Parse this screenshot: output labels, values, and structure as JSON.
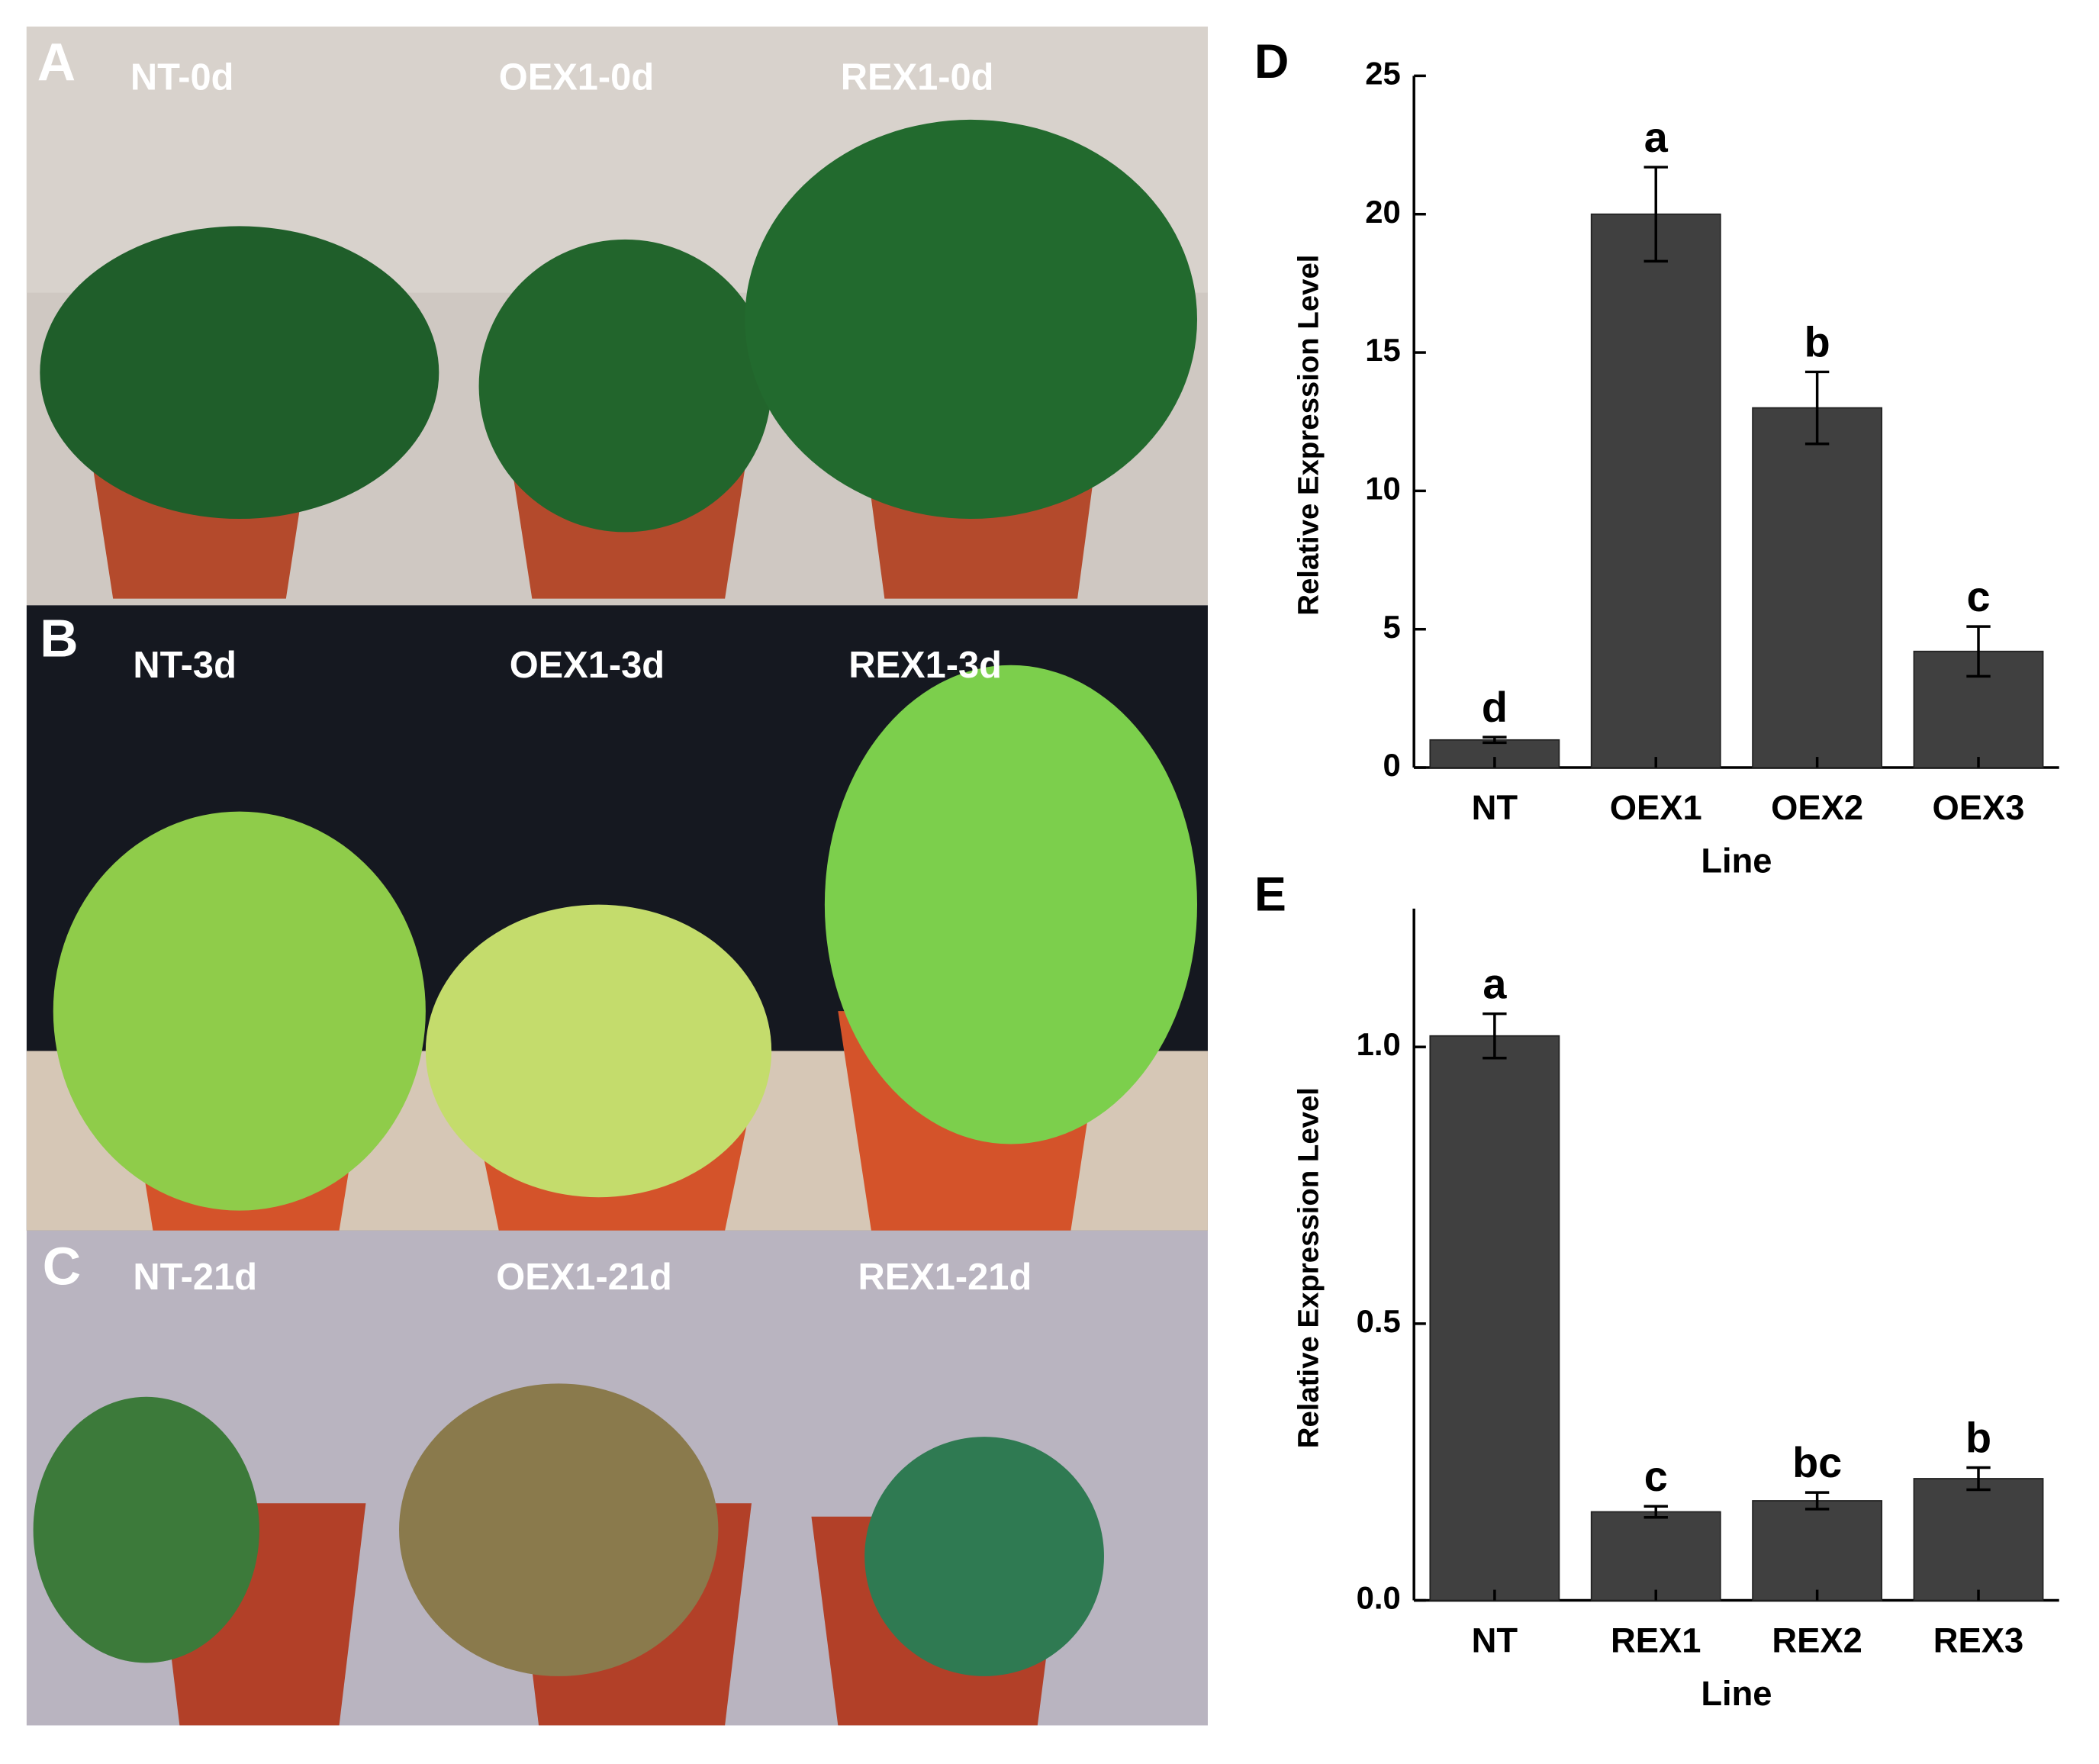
{
  "photos": [
    {
      "letter": "A",
      "labels": [
        "NT-0d",
        "OEX1-0d",
        "REX1-0d"
      ]
    },
    {
      "letter": "B",
      "labels": [
        "NT-3d",
        "OEX1-3d",
        "REX1-3d"
      ]
    },
    {
      "letter": "C",
      "labels": [
        "NT-21d",
        "OEX1-21d",
        "REX1-21d"
      ]
    }
  ],
  "chart_data": [
    {
      "type": "bar",
      "panel": "D",
      "y_label": "Relative Expression Level",
      "x_label": "Line",
      "categories": [
        "NT",
        "OEX1",
        "OEX2",
        "OEX3"
      ],
      "values": [
        1.0,
        20.0,
        13.0,
        4.2
      ],
      "errors": [
        0.1,
        1.7,
        1.3,
        0.9
      ],
      "letters": [
        "d",
        "a",
        "b",
        "c"
      ],
      "color": "#404040",
      "ylim": [
        0,
        25
      ],
      "yticks": [
        0,
        5,
        10,
        15,
        20,
        25
      ]
    },
    {
      "type": "bar",
      "panel": "E",
      "y_label": "Relative Expression Level",
      "x_label": "Line",
      "categories": [
        "NT",
        "REX1",
        "REX2",
        "REX3"
      ],
      "values": [
        1.02,
        0.16,
        0.18,
        0.22
      ],
      "errors": [
        0.04,
        0.01,
        0.015,
        0.02
      ],
      "letters": [
        "a",
        "c",
        "bc",
        "b"
      ],
      "color": "#404040",
      "ylim": [
        0,
        1.25
      ],
      "yticks": [
        {
          "value": 0,
          "label": "0.0"
        },
        {
          "value": 0.5,
          "label": "0.5"
        },
        {
          "value": 1,
          "label": "1.0"
        }
      ]
    }
  ]
}
